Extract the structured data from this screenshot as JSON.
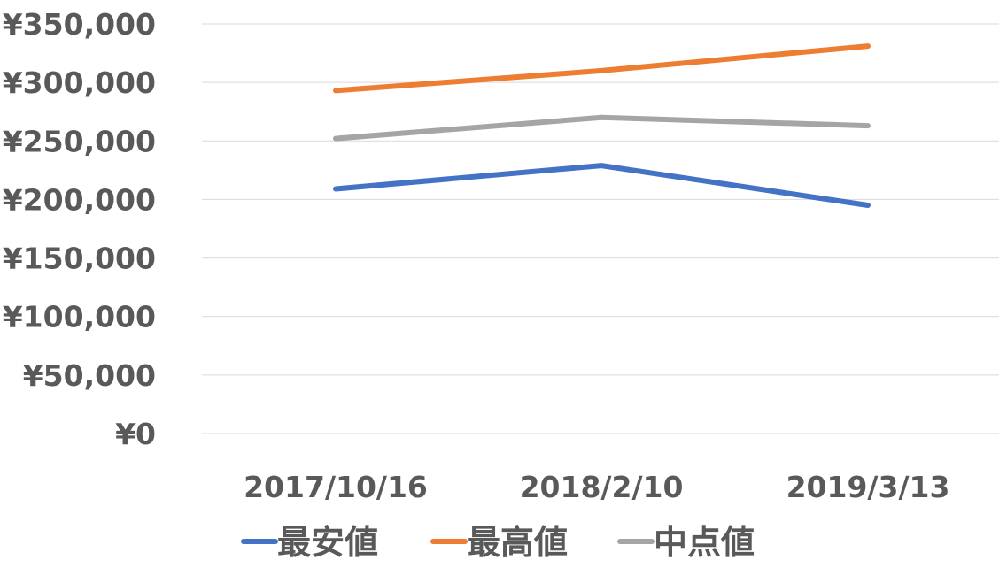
{
  "chart_data": {
    "type": "line",
    "title": "",
    "xlabel": "",
    "ylabel": "",
    "categories": [
      "2017/10/16",
      "2018/2/10",
      "2019/3/13"
    ],
    "series": [
      {
        "name": "最安値",
        "color": "#4472c4",
        "values": [
          209000,
          229000,
          195000
        ]
      },
      {
        "name": "最高値",
        "color": "#ed7d31",
        "values": [
          293000,
          310000,
          331000
        ]
      },
      {
        "name": "中点値",
        "color": "#a5a5a5",
        "values": [
          252000,
          270000,
          263000
        ]
      }
    ],
    "ylim": [
      0,
      350000
    ],
    "y_ticks": [
      "¥0",
      "¥50,000",
      "¥100,000",
      "¥150,000",
      "¥200,000",
      "¥250,000",
      "¥300,000",
      "¥350,000"
    ],
    "y_tick_values": [
      0,
      50000,
      100000,
      150000,
      200000,
      250000,
      300000,
      350000
    ],
    "grid": true,
    "legend": "bottom"
  }
}
